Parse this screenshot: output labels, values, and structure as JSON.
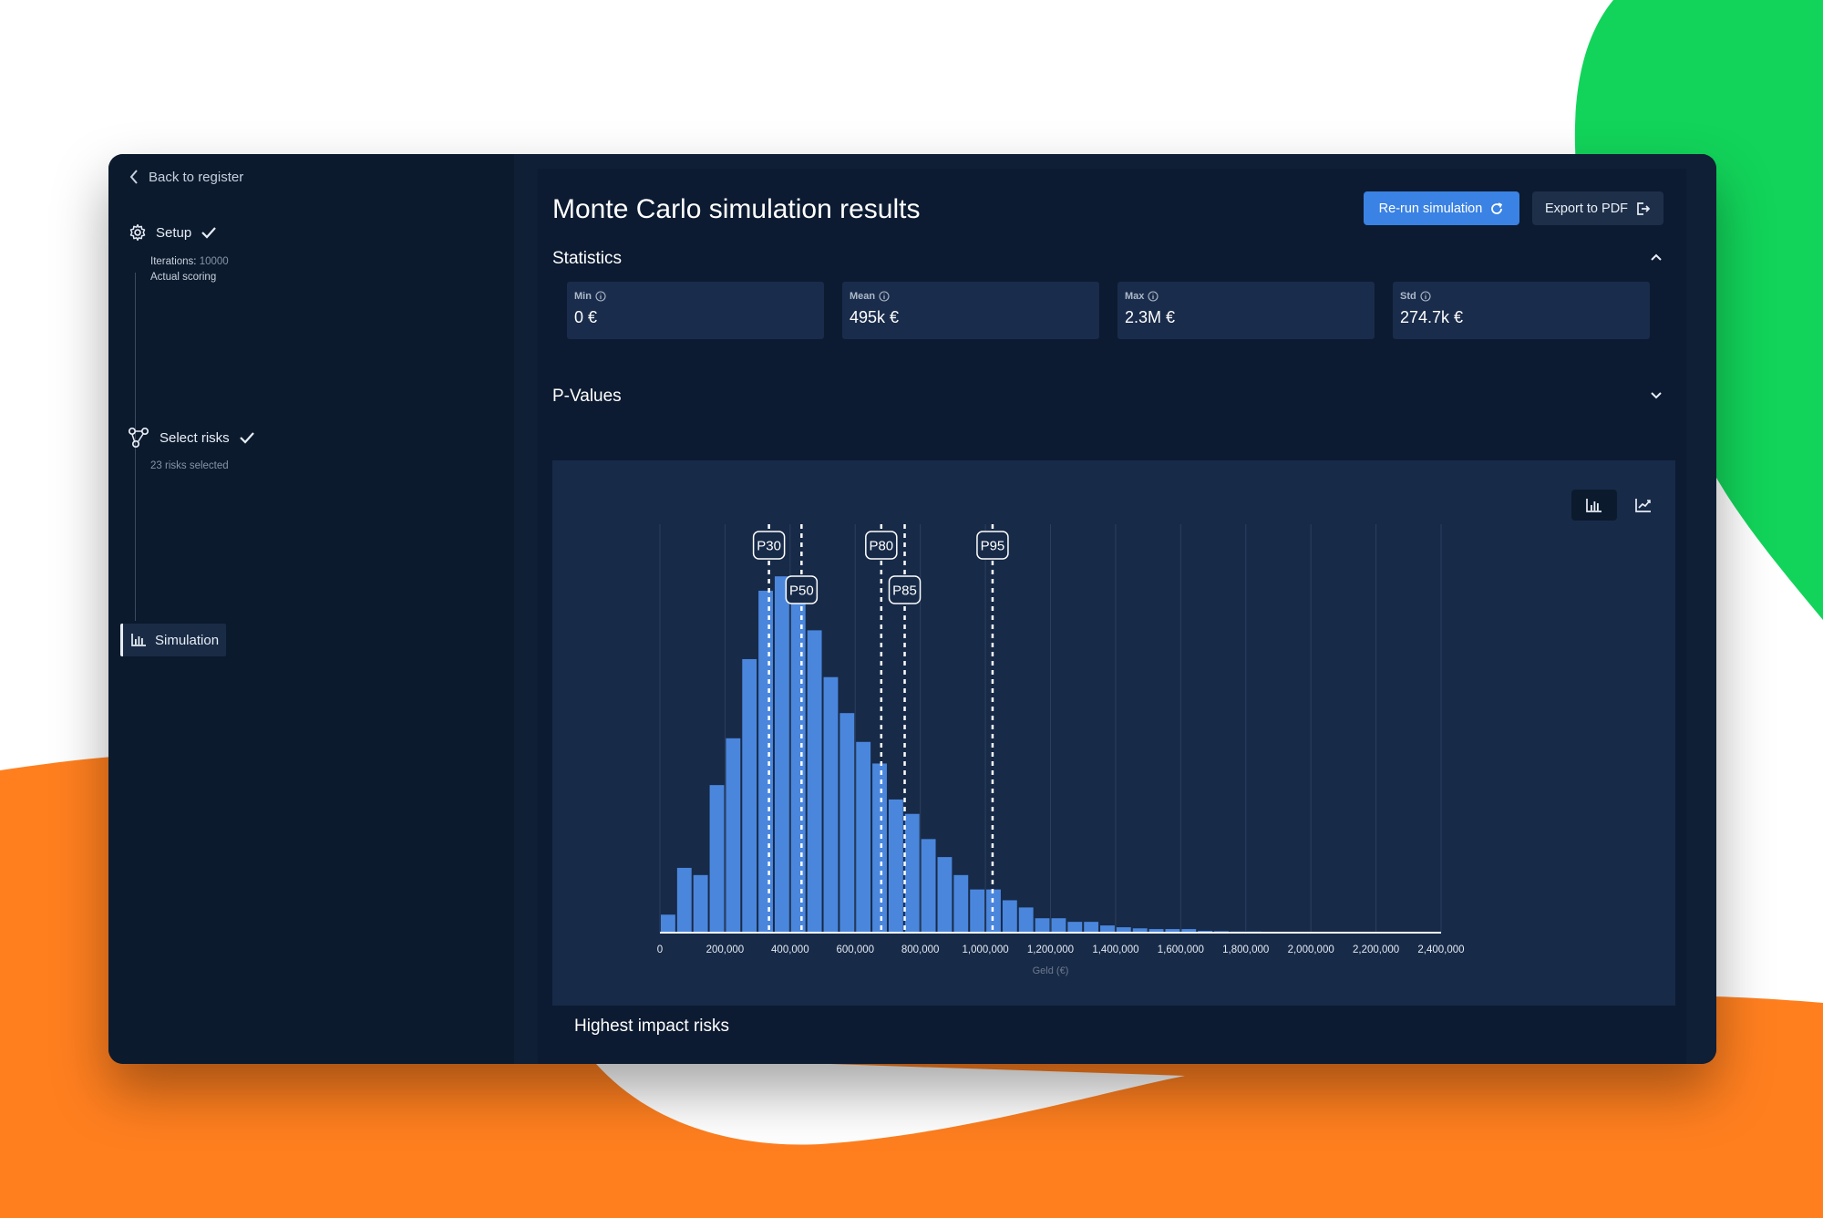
{
  "nav": {
    "back_label": "Back to register",
    "steps": [
      {
        "name": "setup",
        "label": "Setup",
        "completed": true,
        "icon": "gear-icon",
        "details": [
          {
            "label": "Iterations:",
            "value": "10000"
          },
          {
            "label": "Actual scoring",
            "value": ""
          }
        ]
      },
      {
        "name": "select-risks",
        "label": "Select risks",
        "completed": true,
        "icon": "hierarchy-icon",
        "details": [
          {
            "label": "23 risks selected",
            "value": ""
          }
        ]
      },
      {
        "name": "simulation",
        "label": "Simulation",
        "active": true,
        "icon": "bar-chart-icon"
      }
    ]
  },
  "page": {
    "title": "Monte Carlo simulation results",
    "rerun_label": "Re-run simulation",
    "export_label": "Export to PDF",
    "statistics_title": "Statistics",
    "pvalues_title": "P-Values",
    "highest_title": "Highest impact risks"
  },
  "stats": [
    {
      "label": "Min",
      "value": "0 €"
    },
    {
      "label": "Mean",
      "value": "495k €"
    },
    {
      "label": "Max",
      "value": "2.3M €"
    },
    {
      "label": "Std",
      "value": "274.7k €"
    }
  ],
  "colors": {
    "accent": "#3a82e3",
    "bar": "#4a86dc",
    "panel": "#0c1b31",
    "chart_bg": "#172a48"
  },
  "chart_data": {
    "type": "bar",
    "title": "",
    "xlabel": "Geld (€)",
    "ylabel": "",
    "x_tick_labels": [
      "0",
      "200,000",
      "400,000",
      "600,000",
      "800,000",
      "1,000,000",
      "1,200,000",
      "1,400,000",
      "1,600,000",
      "1,800,000",
      "2,000,000",
      "2,200,000",
      "2,400,000"
    ],
    "xlim": [
      0,
      2400000
    ],
    "bin_width": 50000,
    "bin_starts": [
      0,
      50000,
      100000,
      150000,
      200000,
      250000,
      300000,
      350000,
      400000,
      450000,
      500000,
      550000,
      600000,
      650000,
      700000,
      750000,
      800000,
      850000,
      900000,
      950000,
      1000000,
      1050000,
      1100000,
      1150000,
      1200000,
      1250000,
      1300000,
      1350000,
      1400000,
      1450000,
      1500000,
      1550000,
      1600000,
      1650000,
      1700000,
      1750000,
      1800000,
      1850000,
      1900000,
      1950000,
      2000000,
      2050000,
      2100000,
      2150000,
      2200000,
      2250000,
      2300000
    ],
    "values": [
      5,
      18,
      16,
      41,
      54,
      76,
      95,
      99,
      96,
      84,
      71,
      61,
      53,
      47,
      37,
      33,
      26,
      21,
      16,
      12,
      12,
      9,
      7,
      4,
      4,
      3,
      3,
      2,
      1.5,
      1.2,
      1,
      1,
      1,
      0.5,
      0.4,
      0.3,
      0.3,
      0.2,
      0.2,
      0.1,
      0.1,
      0.1,
      0.1,
      0.1,
      0.1,
      0.1,
      0.1
    ],
    "ylim": [
      0,
      115
    ],
    "grid_vertical": true,
    "percentiles": [
      {
        "label": "P30",
        "value": 335000,
        "row": 0
      },
      {
        "label": "P50",
        "value": 435000,
        "row": 1
      },
      {
        "label": "P80",
        "value": 680000,
        "row": 0
      },
      {
        "label": "P85",
        "value": 752000,
        "row": 1
      },
      {
        "label": "P95",
        "value": 1022000,
        "row": 0
      }
    ]
  }
}
